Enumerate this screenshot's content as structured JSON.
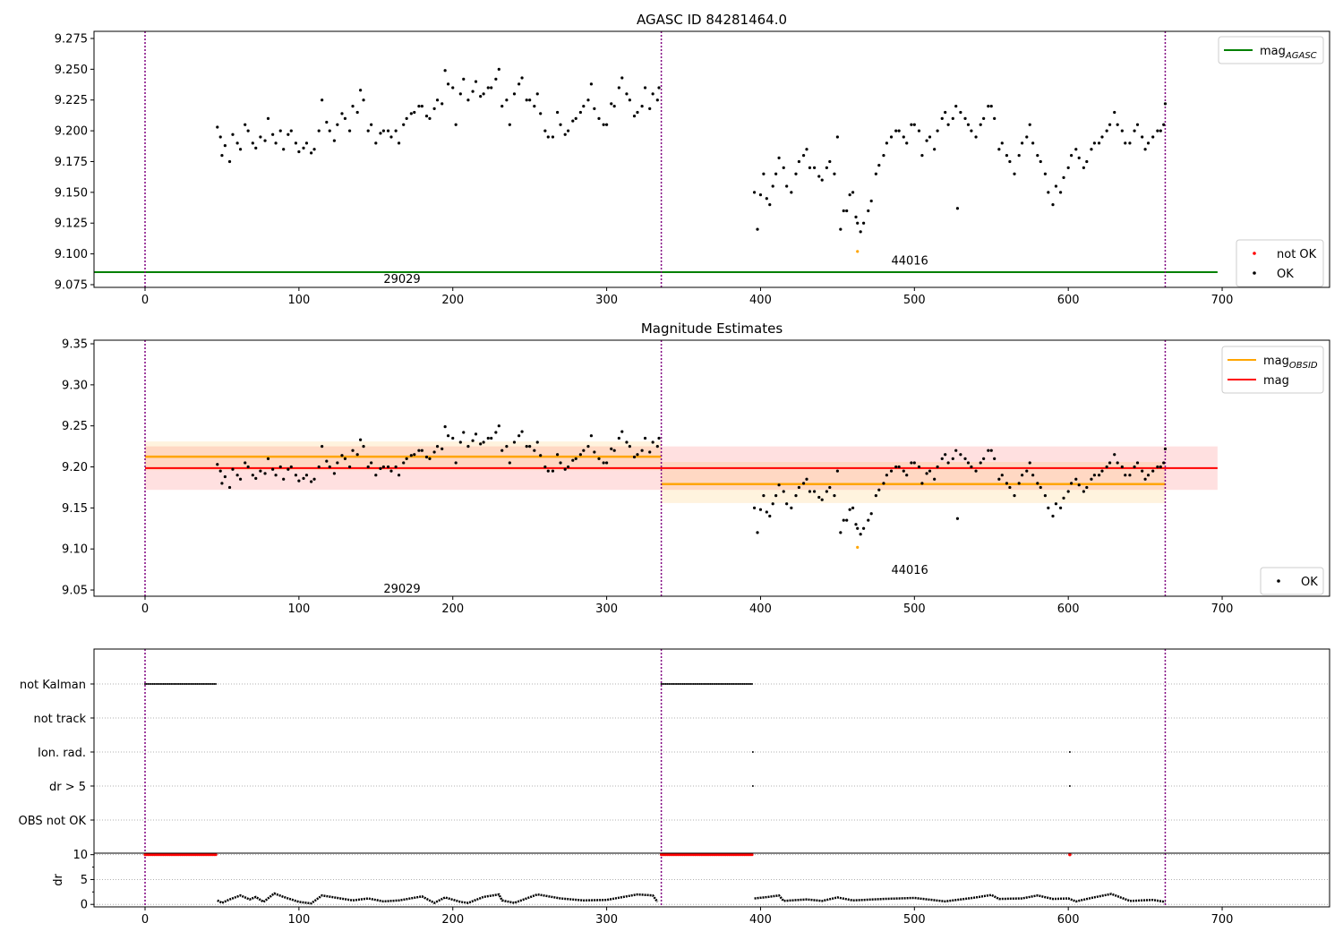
{
  "chart_data": [
    {
      "type": "scatter",
      "title": "AGASC ID 84281464.0",
      "xlim": [
        -33,
        770
      ],
      "ylim": [
        9.0728,
        9.2808
      ],
      "xticks": [
        0,
        100,
        200,
        300,
        400,
        500,
        600,
        700
      ],
      "yticks": [
        9.075,
        9.1,
        9.125,
        9.15,
        9.175,
        9.2,
        9.225,
        9.25,
        9.275
      ],
      "ytick_labels": [
        "9.075",
        "9.100",
        "9.125",
        "9.150",
        "9.175",
        "9.200",
        "9.225",
        "9.250",
        "9.275"
      ],
      "obsid_boundaries": [
        0,
        335.5,
        663
      ],
      "mag_agasc": 9.0852,
      "mag_agasc_xrange": [
        -33,
        697
      ],
      "obsid_labels": [
        {
          "text": "29029",
          "x": 167,
          "y": 9.08
        },
        {
          "text": "44016",
          "x": 497,
          "y": 9.095
        }
      ],
      "legend_top": [
        {
          "label": "mag",
          "sub": "AGASC",
          "color": "#008000"
        }
      ],
      "legend_bottom": [
        {
          "label": "not OK",
          "color": "#ff0000"
        },
        {
          "label": "OK",
          "color": "#000000"
        }
      ]
    },
    {
      "type": "scatter",
      "title": "Magnitude Estimates",
      "xlim": [
        -33,
        770
      ],
      "ylim": [
        9.0424,
        9.3544
      ],
      "xticks": [
        0,
        100,
        200,
        300,
        400,
        500,
        600,
        700
      ],
      "yticks": [
        9.05,
        9.1,
        9.15,
        9.2,
        9.25,
        9.3,
        9.35
      ],
      "ytick_labels": [
        "9.05",
        "9.10",
        "9.15",
        "9.20",
        "9.25",
        "9.30",
        "9.35"
      ],
      "obsid_labels": [
        {
          "text": "29029",
          "x": 167,
          "y": 9.052
        },
        {
          "text": "44016",
          "x": 497,
          "y": 9.075
        }
      ],
      "mag": {
        "value": 9.1985,
        "band": [
          9.172,
          9.225
        ],
        "xrange": [
          0,
          697
        ],
        "color": "#ff0000"
      },
      "mag_obsid": [
        {
          "value": 9.2125,
          "band": [
            9.196,
            9.231
          ],
          "xrange": [
            0,
            335.5
          ]
        },
        {
          "value": 9.179,
          "band": [
            9.156,
            9.206
          ],
          "xrange": [
            335.5,
            663
          ]
        }
      ],
      "legend_top": [
        {
          "label": "mag",
          "sub": "OBSID",
          "color": "#ffa500"
        },
        {
          "label": "mag",
          "sub": "",
          "color": "#ff0000"
        }
      ],
      "legend_bottom": [
        {
          "label": "OK",
          "color": "#000000"
        }
      ]
    },
    {
      "type": "scatter",
      "title": "",
      "categories": [
        "not Kalman",
        "not track",
        "Ion. rad.",
        "dr > 5",
        "OBS not OK"
      ],
      "flags": {
        "not Kalman": {
          "ranges": [
            [
              0,
              46
            ],
            [
              335.5,
              395
            ]
          ],
          "points": []
        },
        "Ion. rad.": {
          "ranges": [],
          "points": [
            395,
            601
          ]
        },
        "dr > 5": {
          "ranges": [],
          "points": [
            395,
            601
          ]
        }
      }
    },
    {
      "type": "line",
      "ylabel": "dr",
      "ylim": [
        -0.5,
        10.3
      ],
      "yticks": [
        0,
        5,
        10
      ],
      "ytick_labels": [
        "0",
        "5",
        "10"
      ],
      "xticks": [
        0,
        100,
        200,
        300,
        400,
        500,
        600,
        700
      ],
      "red_points": {
        "ranges": [
          [
            0,
            46
          ],
          [
            335.5,
            395
          ]
        ],
        "points": [
          601
        ],
        "value": 10
      },
      "dr_segments": [
        [
          [
            47,
            0.8
          ],
          [
            50,
            0.3
          ],
          [
            55,
            1
          ],
          [
            62,
            1.8
          ],
          [
            68,
            1
          ],
          [
            72,
            1.5
          ],
          [
            77,
            0.5
          ],
          [
            84,
            2.2
          ],
          [
            90,
            1.5
          ],
          [
            100,
            0.5
          ],
          [
            108,
            0.2
          ],
          [
            115,
            1.8
          ],
          [
            125,
            1.3
          ],
          [
            135,
            0.8
          ],
          [
            145,
            1.2
          ],
          [
            155,
            0.6
          ],
          [
            165,
            0.8
          ],
          [
            180,
            1.6
          ],
          [
            188,
            0.3
          ],
          [
            195,
            1.4
          ],
          [
            205,
            0.5
          ],
          [
            210,
            0.3
          ],
          [
            220,
            1.5
          ],
          [
            230,
            2
          ],
          [
            232,
            0.8
          ],
          [
            240,
            0.3
          ],
          [
            255,
            2
          ],
          [
            270,
            1.2
          ],
          [
            285,
            0.8
          ],
          [
            300,
            0.9
          ],
          [
            320,
            2
          ],
          [
            330,
            1.8
          ],
          [
            333,
            0.5
          ]
        ],
        [
          [
            396,
            1.2
          ],
          [
            405,
            1.5
          ],
          [
            412,
            1.8
          ],
          [
            415,
            0.7
          ],
          [
            430,
            1
          ],
          [
            440,
            0.7
          ],
          [
            450,
            1.4
          ],
          [
            460,
            0.8
          ],
          [
            480,
            1.1
          ],
          [
            500,
            1.3
          ],
          [
            520,
            0.6
          ],
          [
            540,
            1.4
          ],
          [
            550,
            1.9
          ],
          [
            555,
            1.1
          ],
          [
            570,
            1.2
          ],
          [
            580,
            1.8
          ],
          [
            590,
            1.1
          ],
          [
            600,
            1.2
          ],
          [
            605,
            0.6
          ],
          [
            615,
            1.3
          ],
          [
            628,
            2.1
          ],
          [
            640,
            0.7
          ],
          [
            655,
            0.9
          ],
          [
            663,
            0.5
          ]
        ]
      ]
    }
  ],
  "mag_points_ok": [
    [
      47,
      9.203
    ],
    [
      49,
      9.195
    ],
    [
      50,
      9.18
    ],
    [
      52,
      9.188
    ],
    [
      55,
      9.175
    ],
    [
      57,
      9.197
    ],
    [
      60,
      9.19
    ],
    [
      62,
      9.185
    ],
    [
      65,
      9.205
    ],
    [
      67,
      9.2
    ],
    [
      70,
      9.19
    ],
    [
      72,
      9.186
    ],
    [
      75,
      9.195
    ],
    [
      78,
      9.192
    ],
    [
      80,
      9.21
    ],
    [
      83,
      9.197
    ],
    [
      85,
      9.19
    ],
    [
      88,
      9.2
    ],
    [
      90,
      9.185
    ],
    [
      93,
      9.197
    ],
    [
      95,
      9.2
    ],
    [
      98,
      9.19
    ],
    [
      100,
      9.183
    ],
    [
      103,
      9.186
    ],
    [
      105,
      9.19
    ],
    [
      108,
      9.182
    ],
    [
      110,
      9.185
    ],
    [
      113,
      9.2
    ],
    [
      115,
      9.225
    ],
    [
      118,
      9.207
    ],
    [
      120,
      9.2
    ],
    [
      123,
      9.192
    ],
    [
      125,
      9.205
    ],
    [
      128,
      9.214
    ],
    [
      130,
      9.21
    ],
    [
      133,
      9.2
    ],
    [
      135,
      9.22
    ],
    [
      138,
      9.215
    ],
    [
      140,
      9.233
    ],
    [
      142,
      9.225
    ],
    [
      145,
      9.2
    ],
    [
      147,
      9.205
    ],
    [
      150,
      9.19
    ],
    [
      153,
      9.198
    ],
    [
      155,
      9.2
    ],
    [
      158,
      9.2
    ],
    [
      160,
      9.195
    ],
    [
      163,
      9.2
    ],
    [
      165,
      9.19
    ],
    [
      168,
      9.205
    ],
    [
      170,
      9.21
    ],
    [
      173,
      9.214
    ],
    [
      175,
      9.215
    ],
    [
      178,
      9.22
    ],
    [
      180,
      9.22
    ],
    [
      183,
      9.212
    ],
    [
      185,
      9.21
    ],
    [
      188,
      9.218
    ],
    [
      190,
      9.225
    ],
    [
      193,
      9.222
    ],
    [
      195,
      9.249
    ],
    [
      197,
      9.238
    ],
    [
      200,
      9.235
    ],
    [
      202,
      9.205
    ],
    [
      205,
      9.23
    ],
    [
      207,
      9.242
    ],
    [
      210,
      9.225
    ],
    [
      213,
      9.232
    ],
    [
      215,
      9.24
    ],
    [
      218,
      9.228
    ],
    [
      220,
      9.23
    ],
    [
      223,
      9.235
    ],
    [
      225,
      9.235
    ],
    [
      228,
      9.242
    ],
    [
      230,
      9.25
    ],
    [
      232,
      9.22
    ],
    [
      235,
      9.225
    ],
    [
      237,
      9.205
    ],
    [
      240,
      9.23
    ],
    [
      243,
      9.238
    ],
    [
      245,
      9.243
    ],
    [
      248,
      9.225
    ],
    [
      250,
      9.225
    ],
    [
      253,
      9.22
    ],
    [
      255,
      9.23
    ],
    [
      257,
      9.214
    ],
    [
      260,
      9.2
    ],
    [
      262,
      9.195
    ],
    [
      265,
      9.195
    ],
    [
      268,
      9.215
    ],
    [
      270,
      9.205
    ],
    [
      273,
      9.197
    ],
    [
      275,
      9.2
    ],
    [
      278,
      9.208
    ],
    [
      280,
      9.21
    ],
    [
      283,
      9.215
    ],
    [
      285,
      9.22
    ],
    [
      288,
      9.225
    ],
    [
      290,
      9.238
    ],
    [
      292,
      9.218
    ],
    [
      295,
      9.21
    ],
    [
      298,
      9.205
    ],
    [
      300,
      9.205
    ],
    [
      303,
      9.222
    ],
    [
      305,
      9.22
    ],
    [
      308,
      9.235
    ],
    [
      310,
      9.243
    ],
    [
      313,
      9.23
    ],
    [
      315,
      9.225
    ],
    [
      318,
      9.212
    ],
    [
      320,
      9.215
    ],
    [
      323,
      9.22
    ],
    [
      325,
      9.235
    ],
    [
      328,
      9.218
    ],
    [
      330,
      9.23
    ],
    [
      333,
      9.225
    ],
    [
      334,
      9.235
    ],
    [
      396,
      9.15
    ],
    [
      398,
      9.12
    ],
    [
      400,
      9.148
    ],
    [
      402,
      9.165
    ],
    [
      404,
      9.145
    ],
    [
      406,
      9.14
    ],
    [
      408,
      9.155
    ],
    [
      410,
      9.165
    ],
    [
      412,
      9.178
    ],
    [
      415,
      9.17
    ],
    [
      417,
      9.155
    ],
    [
      420,
      9.15
    ],
    [
      423,
      9.165
    ],
    [
      425,
      9.175
    ],
    [
      428,
      9.18
    ],
    [
      430,
      9.185
    ],
    [
      432,
      9.17
    ],
    [
      435,
      9.17
    ],
    [
      438,
      9.163
    ],
    [
      440,
      9.16
    ],
    [
      443,
      9.17
    ],
    [
      445,
      9.175
    ],
    [
      448,
      9.165
    ],
    [
      450,
      9.195
    ],
    [
      452,
      9.12
    ],
    [
      454,
      9.135
    ],
    [
      456,
      9.135
    ],
    [
      458,
      9.148
    ],
    [
      460,
      9.15
    ],
    [
      462,
      9.13
    ],
    [
      463,
      9.125
    ],
    [
      465,
      9.118
    ],
    [
      467,
      9.125
    ],
    [
      470,
      9.135
    ],
    [
      472,
      9.143
    ],
    [
      475,
      9.165
    ],
    [
      477,
      9.172
    ],
    [
      480,
      9.18
    ],
    [
      482,
      9.19
    ],
    [
      485,
      9.195
    ],
    [
      488,
      9.2
    ],
    [
      490,
      9.2
    ],
    [
      493,
      9.195
    ],
    [
      495,
      9.19
    ],
    [
      498,
      9.205
    ],
    [
      500,
      9.205
    ],
    [
      503,
      9.2
    ],
    [
      505,
      9.18
    ],
    [
      508,
      9.192
    ],
    [
      510,
      9.195
    ],
    [
      513,
      9.185
    ],
    [
      515,
      9.2
    ],
    [
      518,
      9.21
    ],
    [
      520,
      9.215
    ],
    [
      522,
      9.205
    ],
    [
      525,
      9.21
    ],
    [
      527,
      9.22
    ],
    [
      528,
      9.137
    ],
    [
      530,
      9.215
    ],
    [
      533,
      9.21
    ],
    [
      535,
      9.205
    ],
    [
      537,
      9.2
    ],
    [
      540,
      9.195
    ],
    [
      543,
      9.205
    ],
    [
      545,
      9.21
    ],
    [
      548,
      9.22
    ],
    [
      550,
      9.22
    ],
    [
      552,
      9.21
    ],
    [
      555,
      9.185
    ],
    [
      557,
      9.19
    ],
    [
      560,
      9.18
    ],
    [
      562,
      9.175
    ],
    [
      565,
      9.165
    ],
    [
      568,
      9.18
    ],
    [
      570,
      9.19
    ],
    [
      573,
      9.195
    ],
    [
      575,
      9.205
    ],
    [
      577,
      9.19
    ],
    [
      580,
      9.18
    ],
    [
      582,
      9.175
    ],
    [
      585,
      9.165
    ],
    [
      587,
      9.15
    ],
    [
      590,
      9.14
    ],
    [
      592,
      9.155
    ],
    [
      595,
      9.15
    ],
    [
      597,
      9.162
    ],
    [
      600,
      9.17
    ],
    [
      602,
      9.18
    ],
    [
      605,
      9.185
    ],
    [
      607,
      9.178
    ],
    [
      610,
      9.17
    ],
    [
      612,
      9.175
    ],
    [
      615,
      9.185
    ],
    [
      617,
      9.19
    ],
    [
      620,
      9.19
    ],
    [
      622,
      9.195
    ],
    [
      625,
      9.2
    ],
    [
      627,
      9.205
    ],
    [
      630,
      9.215
    ],
    [
      632,
      9.205
    ],
    [
      635,
      9.2
    ],
    [
      637,
      9.19
    ],
    [
      640,
      9.19
    ],
    [
      643,
      9.2
    ],
    [
      645,
      9.205
    ],
    [
      648,
      9.195
    ],
    [
      650,
      9.185
    ],
    [
      652,
      9.19
    ],
    [
      655,
      9.195
    ],
    [
      658,
      9.2
    ],
    [
      660,
      9.2
    ],
    [
      662,
      9.205
    ],
    [
      663,
      9.222
    ]
  ],
  "mag_points_not_ok": [
    [
      463,
      9.102
    ]
  ],
  "colors": {
    "ok": "#000000",
    "not_ok": "#ff0000",
    "not_ok_mag": "#ffa500",
    "boundary": "#800080",
    "agasc": "#008000",
    "obsid": "#ffa500",
    "mag": "#ff0000"
  }
}
